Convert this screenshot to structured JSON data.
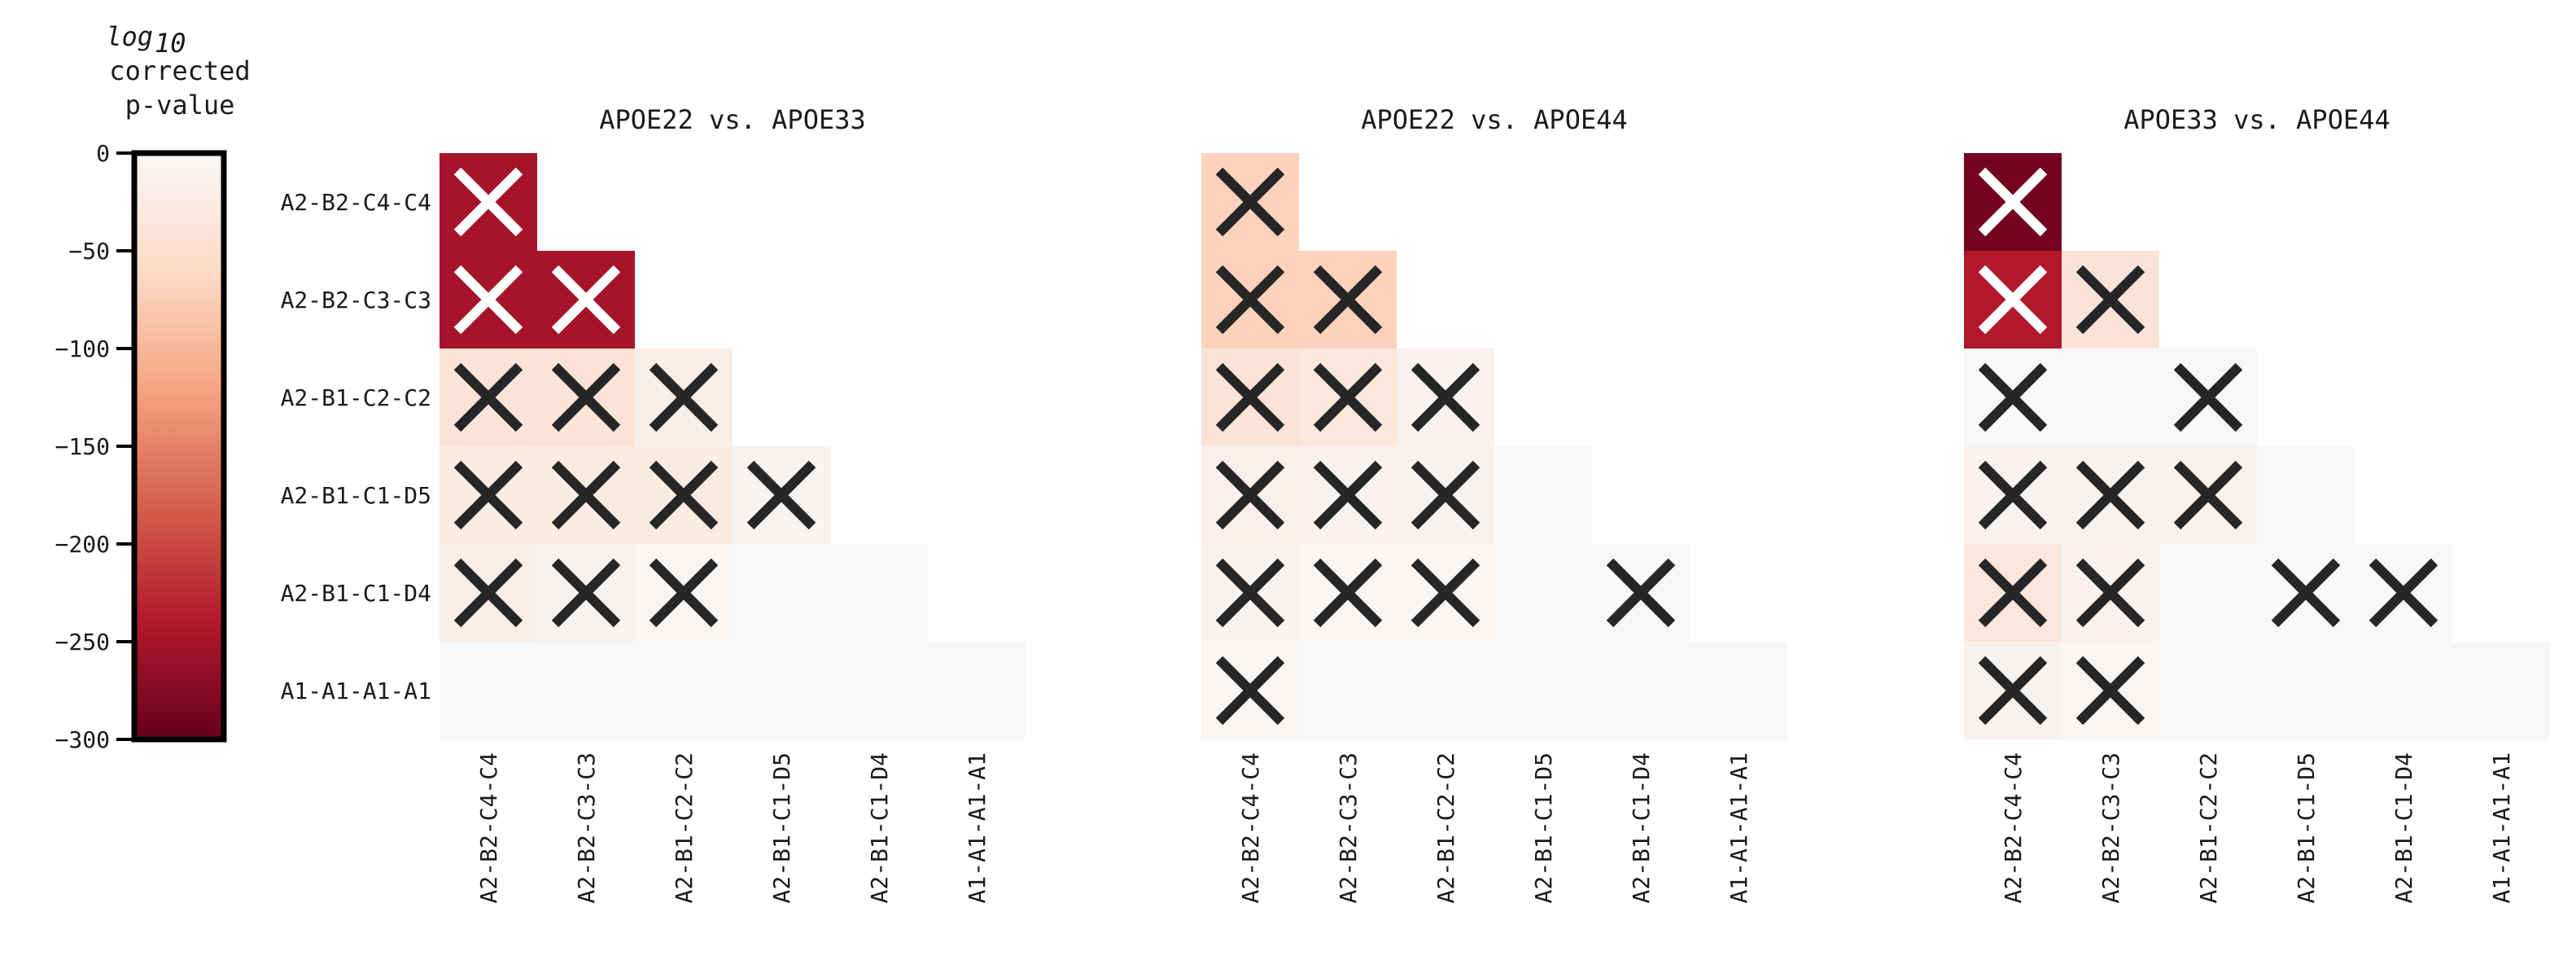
{
  "chart_data": {
    "type": "heatmap",
    "colorbar": {
      "title_main": "log",
      "title_sub": "10",
      "title_line2": "corrected",
      "title_line3": "p-value",
      "ticks": [
        0,
        -50,
        -100,
        -150,
        -200,
        -250,
        -300
      ],
      "tick_labels": [
        "0",
        "−50",
        "−100",
        "−150",
        "−200",
        "−250",
        "−300"
      ],
      "range": [
        -300,
        0
      ],
      "colormap": [
        "#67001f",
        "#b2182b",
        "#d6604d",
        "#f4a582",
        "#fddbc7",
        "#f7f7f7"
      ]
    },
    "row_labels": [
      "A2-B2-C4-C4",
      "A2-B2-C3-C3",
      "A2-B1-C2-C2",
      "A2-B1-C1-D5",
      "A2-B1-C1-D4",
      "A1-A1-A1-A1"
    ],
    "col_labels": [
      "A2-B2-C4-C4",
      "A2-B2-C3-C3",
      "A2-B1-C2-C2",
      "A2-B1-C1-D5",
      "A2-B1-C1-D4",
      "A1-A1-A1-A1"
    ],
    "panels": [
      {
        "title": "APOE22 vs. APOE33",
        "values": [
          [
            -250
          ],
          [
            -250,
            -250
          ],
          [
            -40,
            -40,
            -20
          ],
          [
            -25,
            -25,
            -25,
            -8
          ],
          [
            -20,
            -10,
            -5,
            0,
            0
          ],
          [
            0,
            0,
            0,
            0,
            0,
            0
          ]
        ],
        "marks": [
          [
            1
          ],
          [
            1,
            1
          ],
          [
            1,
            1,
            1
          ],
          [
            1,
            1,
            1,
            1
          ],
          [
            1,
            1,
            1,
            0,
            0
          ],
          [
            0,
            0,
            0,
            0,
            0,
            0
          ]
        ]
      },
      {
        "title": "APOE22 vs. APOE44",
        "values": [
          [
            -70
          ],
          [
            -70,
            -70
          ],
          [
            -40,
            -35,
            -12
          ],
          [
            -15,
            -12,
            -10,
            0
          ],
          [
            -10,
            -5,
            -5,
            0,
            0
          ],
          [
            -5,
            0,
            0,
            0,
            0,
            0
          ]
        ],
        "marks": [
          [
            1
          ],
          [
            1,
            1
          ],
          [
            1,
            1,
            1
          ],
          [
            1,
            1,
            1,
            0
          ],
          [
            1,
            1,
            1,
            0,
            1
          ],
          [
            1,
            0,
            0,
            0,
            0,
            0
          ]
        ]
      },
      {
        "title": "APOE33 vs. APOE44",
        "values": [
          [
            -290
          ],
          [
            -240,
            -40
          ],
          [
            0,
            0,
            0
          ],
          [
            -12,
            -10,
            -10,
            0
          ],
          [
            -35,
            -12,
            0,
            0,
            0
          ],
          [
            -10,
            -5,
            0,
            0,
            0,
            0
          ]
        ],
        "marks": [
          [
            1
          ],
          [
            1,
            1
          ],
          [
            1,
            0,
            1
          ],
          [
            1,
            1,
            1,
            0
          ],
          [
            1,
            1,
            0,
            1,
            1
          ],
          [
            1,
            1,
            0,
            0,
            0,
            0
          ]
        ]
      }
    ]
  }
}
